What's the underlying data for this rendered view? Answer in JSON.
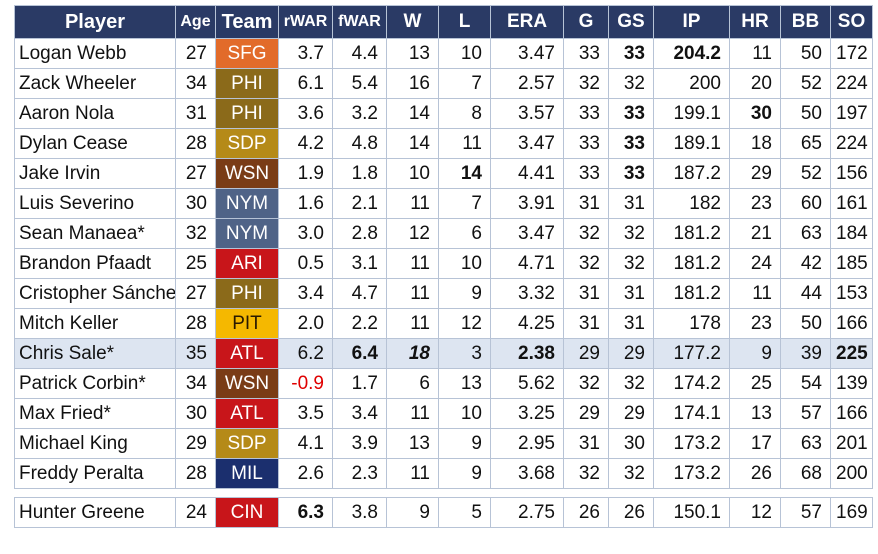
{
  "columns": [
    "Player",
    "Age",
    "Team",
    "rWAR",
    "fWAR",
    "W",
    "L",
    "ERA",
    "G",
    "GS",
    "IP",
    "HR",
    "BB",
    "SO"
  ],
  "rows": [
    {
      "player": "Logan Webb",
      "age": "27",
      "team": "SFG",
      "team_bg": "#e26b2a",
      "rwar": "3.7",
      "fwar": "4.4",
      "w": "13",
      "l": "10",
      "era": "3.47",
      "g": "33",
      "gs": "33",
      "ip": "204.2",
      "hr": "11",
      "bb": "50",
      "so": "172",
      "bold": [
        "gs",
        "ip"
      ]
    },
    {
      "player": "Zack Wheeler",
      "age": "34",
      "team": "PHI",
      "team_bg": "#8b6a1a",
      "rwar": "6.1",
      "fwar": "5.4",
      "w": "16",
      "l": "7",
      "era": "2.57",
      "g": "32",
      "gs": "32",
      "ip": "200",
      "hr": "20",
      "bb": "52",
      "so": "224"
    },
    {
      "player": "Aaron Nola",
      "age": "31",
      "team": "PHI",
      "team_bg": "#8b6a1a",
      "rwar": "3.6",
      "fwar": "3.2",
      "w": "14",
      "l": "8",
      "era": "3.57",
      "g": "33",
      "gs": "33",
      "ip": "199.1",
      "hr": "30",
      "bb": "50",
      "so": "197",
      "bold": [
        "gs",
        "hr"
      ]
    },
    {
      "player": "Dylan Cease",
      "age": "28",
      "team": "SDP",
      "team_bg": "#b58a18",
      "rwar": "4.2",
      "fwar": "4.8",
      "w": "14",
      "l": "11",
      "era": "3.47",
      "g": "33",
      "gs": "33",
      "ip": "189.1",
      "hr": "18",
      "bb": "65",
      "so": "224",
      "bold": [
        "gs"
      ]
    },
    {
      "player": "Jake Irvin",
      "age": "27",
      "team": "WSN",
      "team_bg": "#7a3c16",
      "rwar": "1.9",
      "fwar": "1.8",
      "w": "10",
      "l": "14",
      "era": "4.41",
      "g": "33",
      "gs": "33",
      "ip": "187.2",
      "hr": "29",
      "bb": "52",
      "so": "156",
      "bold": [
        "l",
        "gs"
      ]
    },
    {
      "player": "Luis Severino",
      "age": "30",
      "team": "NYM",
      "team_bg": "#4f6387",
      "rwar": "1.6",
      "fwar": "2.1",
      "w": "11",
      "l": "7",
      "era": "3.91",
      "g": "31",
      "gs": "31",
      "ip": "182",
      "hr": "23",
      "bb": "60",
      "so": "161"
    },
    {
      "player": "Sean Manaea*",
      "age": "32",
      "team": "NYM",
      "team_bg": "#4f6387",
      "rwar": "3.0",
      "fwar": "2.8",
      "w": "12",
      "l": "6",
      "era": "3.47",
      "g": "32",
      "gs": "32",
      "ip": "181.2",
      "hr": "21",
      "bb": "63",
      "so": "184"
    },
    {
      "player": "Brandon Pfaadt",
      "age": "25",
      "team": "ARI",
      "team_bg": "#c8151a",
      "rwar": "0.5",
      "fwar": "3.1",
      "w": "11",
      "l": "10",
      "era": "4.71",
      "g": "32",
      "gs": "32",
      "ip": "181.2",
      "hr": "24",
      "bb": "42",
      "so": "185"
    },
    {
      "player": "Cristopher Sánchez",
      "age": "27",
      "team": "PHI",
      "team_bg": "#8b6a1a",
      "rwar": "3.4",
      "fwar": "4.7",
      "w": "11",
      "l": "9",
      "era": "3.32",
      "g": "31",
      "gs": "31",
      "ip": "181.2",
      "hr": "11",
      "bb": "44",
      "so": "153"
    },
    {
      "player": "Mitch Keller",
      "age": "28",
      "team": "PIT",
      "team_bg": "#f5b800",
      "rwar": "2.0",
      "fwar": "2.2",
      "w": "11",
      "l": "12",
      "era": "4.25",
      "g": "31",
      "gs": "31",
      "ip": "178",
      "hr": "23",
      "bb": "50",
      "so": "166"
    },
    {
      "player": "Chris Sale*",
      "age": "35",
      "team": "ATL",
      "team_bg": "#c8151a",
      "rwar": "6.2",
      "fwar": "6.4",
      "w": "18",
      "l": "3",
      "era": "2.38",
      "g": "29",
      "gs": "29",
      "ip": "177.2",
      "hr": "9",
      "bb": "39",
      "so": "225",
      "bold": [
        "fwar",
        "era",
        "so"
      ],
      "bolditalic": [
        "w"
      ],
      "highlight": true
    },
    {
      "player": "Patrick Corbin*",
      "age": "34",
      "team": "WSN",
      "team_bg": "#7a3c16",
      "rwar": "-0.9",
      "fwar": "1.7",
      "w": "6",
      "l": "13",
      "era": "5.62",
      "g": "32",
      "gs": "32",
      "ip": "174.2",
      "hr": "25",
      "bb": "54",
      "so": "139",
      "negative": [
        "rwar"
      ]
    },
    {
      "player": "Max Fried*",
      "age": "30",
      "team": "ATL",
      "team_bg": "#c8151a",
      "rwar": "3.5",
      "fwar": "3.4",
      "w": "11",
      "l": "10",
      "era": "3.25",
      "g": "29",
      "gs": "29",
      "ip": "174.1",
      "hr": "13",
      "bb": "57",
      "so": "166"
    },
    {
      "player": "Michael King",
      "age": "29",
      "team": "SDP",
      "team_bg": "#b58a18",
      "rwar": "4.1",
      "fwar": "3.9",
      "w": "13",
      "l": "9",
      "era": "2.95",
      "g": "31",
      "gs": "30",
      "ip": "173.2",
      "hr": "17",
      "bb": "63",
      "so": "201"
    },
    {
      "player": "Freddy Peralta",
      "age": "28",
      "team": "MIL",
      "team_bg": "#1b2f6e",
      "rwar": "2.6",
      "fwar": "2.3",
      "w": "11",
      "l": "9",
      "era": "3.68",
      "g": "32",
      "gs": "32",
      "ip": "173.2",
      "hr": "26",
      "bb": "68",
      "so": "200"
    }
  ],
  "extra_row": {
    "player": "Hunter Greene",
    "age": "24",
    "team": "CIN",
    "team_bg": "#c8151a",
    "rwar": "6.3",
    "fwar": "3.8",
    "w": "9",
    "l": "5",
    "era": "2.75",
    "g": "26",
    "gs": "26",
    "ip": "150.1",
    "hr": "12",
    "bb": "57",
    "so": "169",
    "bold": [
      "rwar"
    ]
  }
}
